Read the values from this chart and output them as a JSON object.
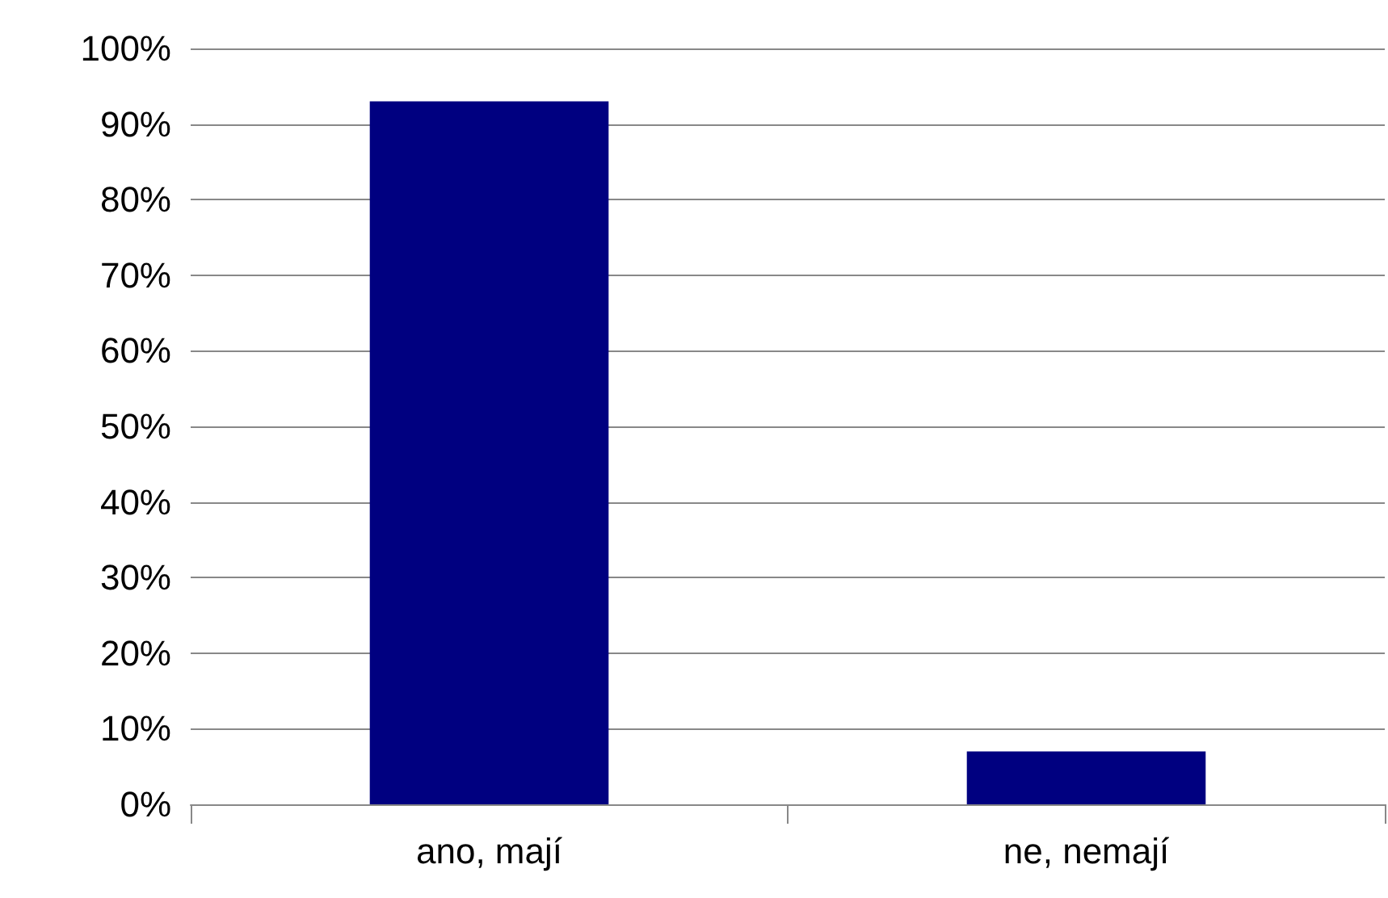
{
  "chart_data": {
    "type": "bar",
    "categories": [
      "ano, mají",
      "ne, nemají"
    ],
    "values": [
      93,
      7
    ],
    "color": "#000080",
    "ylim": [
      0,
      100
    ],
    "yticks": [
      {
        "value": 0,
        "label": "0%"
      },
      {
        "value": 10,
        "label": "10%"
      },
      {
        "value": 20,
        "label": "20%"
      },
      {
        "value": 30,
        "label": "30%"
      },
      {
        "value": 40,
        "label": "40%"
      },
      {
        "value": 50,
        "label": "50%"
      },
      {
        "value": 60,
        "label": "60%"
      },
      {
        "value": 70,
        "label": "70%"
      },
      {
        "value": 80,
        "label": "80%"
      },
      {
        "value": 90,
        "label": "90%"
      },
      {
        "value": 100,
        "label": "100%"
      }
    ],
    "grid": "y"
  }
}
